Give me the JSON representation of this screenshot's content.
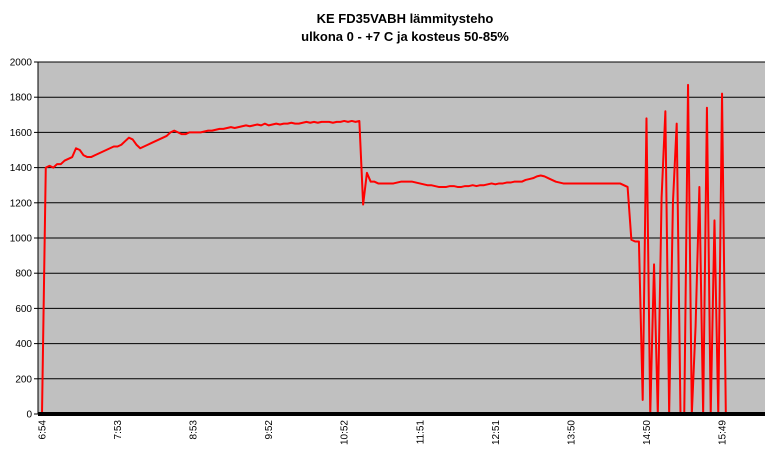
{
  "chart_data": {
    "type": "line",
    "title": "KE FD35VABH lämmitysteho",
    "subtitle": "ulkona 0 - +7 C ja kosteus 50-85%",
    "categories": [
      "6:54",
      null,
      null,
      null,
      null,
      null,
      null,
      null,
      null,
      null,
      null,
      null,
      null,
      null,
      null,
      null,
      null,
      null,
      null,
      null,
      "7:53",
      null,
      null,
      null,
      null,
      null,
      null,
      null,
      null,
      null,
      null,
      null,
      null,
      null,
      null,
      null,
      null,
      null,
      null,
      null,
      "8:53",
      null,
      null,
      null,
      null,
      null,
      null,
      null,
      null,
      null,
      null,
      null,
      null,
      null,
      null,
      null,
      null,
      null,
      null,
      null,
      "9:52",
      null,
      null,
      null,
      null,
      null,
      null,
      null,
      null,
      null,
      null,
      null,
      null,
      null,
      null,
      null,
      null,
      null,
      null,
      null,
      "10:52",
      null,
      null,
      null,
      null,
      null,
      null,
      null,
      null,
      null,
      null,
      null,
      null,
      null,
      null,
      null,
      null,
      null,
      null,
      null,
      "11:51",
      null,
      null,
      null,
      null,
      null,
      null,
      null,
      null,
      null,
      null,
      null,
      null,
      null,
      null,
      null,
      null,
      null,
      null,
      null,
      "12:51",
      null,
      null,
      null,
      null,
      null,
      null,
      null,
      null,
      null,
      null,
      null,
      null,
      null,
      null,
      null,
      null,
      null,
      null,
      null,
      "13:50",
      null,
      null,
      null,
      null,
      null,
      null,
      null,
      null,
      null,
      null,
      null,
      null,
      null,
      null,
      null,
      null,
      null,
      null,
      null,
      "14:50",
      null,
      null,
      null,
      null,
      null,
      null,
      null,
      null,
      null,
      null,
      null,
      null,
      null,
      null,
      null,
      null,
      null,
      null,
      null,
      "15:49",
      null,
      null,
      null,
      null,
      null,
      null,
      null,
      null,
      null,
      null
    ],
    "series": [
      {
        "name": "lämmitysteho",
        "color": "#ff0000",
        "values": [
          0,
          1400,
          1410,
          1400,
          1420,
          1420,
          1440,
          1450,
          1460,
          1510,
          1500,
          1470,
          1460,
          1460,
          1470,
          1480,
          1490,
          1500,
          1510,
          1520,
          1520,
          1530,
          1550,
          1570,
          1560,
          1530,
          1510,
          1520,
          1530,
          1540,
          1550,
          1560,
          1570,
          1580,
          1600,
          1610,
          1600,
          1590,
          1590,
          1600,
          1600,
          1600,
          1600,
          1605,
          1610,
          1610,
          1615,
          1620,
          1620,
          1625,
          1630,
          1625,
          1630,
          1635,
          1640,
          1635,
          1640,
          1645,
          1640,
          1650,
          1640,
          1645,
          1650,
          1645,
          1650,
          1650,
          1655,
          1650,
          1650,
          1655,
          1660,
          1655,
          1660,
          1655,
          1660,
          1660,
          1660,
          1655,
          1660,
          1660,
          1665,
          1660,
          1665,
          1660,
          1665,
          1190,
          1370,
          1320,
          1320,
          1310,
          1310,
          1310,
          1310,
          1310,
          1315,
          1320,
          1320,
          1320,
          1320,
          1315,
          1310,
          1305,
          1300,
          1300,
          1295,
          1290,
          1290,
          1290,
          1295,
          1295,
          1290,
          1290,
          1295,
          1295,
          1300,
          1295,
          1300,
          1300,
          1305,
          1310,
          1305,
          1310,
          1310,
          1315,
          1315,
          1320,
          1320,
          1320,
          1330,
          1335,
          1340,
          1350,
          1355,
          1350,
          1340,
          1330,
          1320,
          1315,
          1310,
          1310,
          1310,
          1310,
          1310,
          1310,
          1310,
          1310,
          1310,
          1310,
          1310,
          1310,
          1310,
          1310,
          1310,
          1310,
          1300,
          1290,
          990,
          980,
          980,
          80,
          1680,
          0,
          850,
          0,
          1230,
          1720,
          0,
          1200,
          1650,
          0,
          0,
          1870,
          0,
          500,
          1290,
          0,
          1740,
          0,
          1100,
          0,
          1820,
          0,
          0,
          0,
          0,
          0,
          0,
          0,
          0,
          0,
          0
        ]
      }
    ],
    "ylim": [
      0,
      2000
    ],
    "yticks": [
      0,
      200,
      400,
      600,
      800,
      1000,
      1200,
      1400,
      1600,
      1800,
      2000
    ],
    "grid": true
  }
}
